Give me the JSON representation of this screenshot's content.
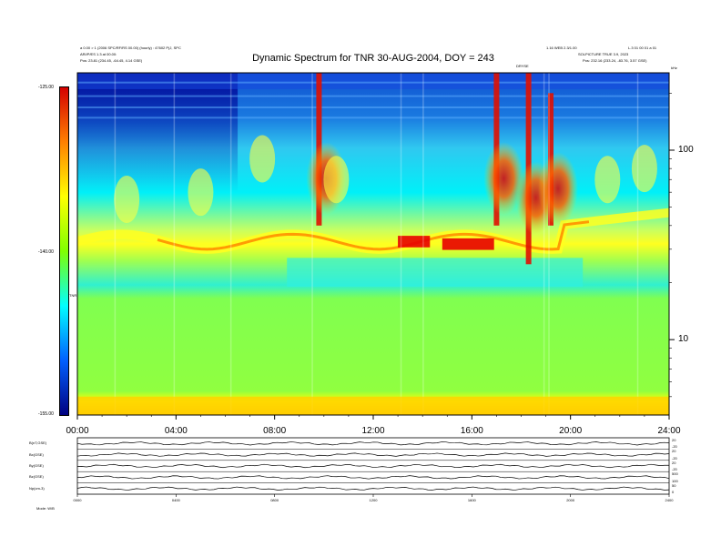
{
  "header": {
    "title": "Dynamic Spectrum for TNR 30-AUG-2004, DOY = 243",
    "left_line1": "a 0.00 > 1 (2006 SPC/RF/RS 00.00) (hourly) : 47602 P(J, SPC",
    "left_line2": "ARI/P/ES 1.3 at 00.00:",
    "left_line3": "Pos:    23.81 (234.45, -64.45, 4.14 GSE)",
    "right_line1": "1.16 WEB 2.3/1.00",
    "right_line2": "L.3 01 00 01 a 01",
    "right_line3": "SOLPICTURE TRUE 3.9, 2023",
    "right_line4": "Pos:    232.16 (233.24, -83.76, 3.57 GSE)",
    "marker_label": "DRYSE",
    "khz_label": "kHz"
  },
  "colorbar": {
    "ticks": [
      "-125.00",
      "-140.00",
      "-155.00"
    ],
    "label": "TNR",
    "colors": [
      "#d40000",
      "#ff8000",
      "#ffff00",
      "#80ff00",
      "#00ffff",
      "#0060ff",
      "#000080"
    ]
  },
  "chart_data": {
    "type": "heatmap",
    "title": "Dynamic Spectrum for TNR 30-AUG-2004, DOY = 243",
    "x_tick_labels": [
      "00:00",
      "04:00",
      "08:00",
      "12:00",
      "16:00",
      "20:00",
      "24:00"
    ],
    "x_range_hours": [
      0,
      24
    ],
    "y_scale": "log",
    "y_unit": "kHz",
    "y_tick_labels": [
      "100",
      "10"
    ],
    "y_range_khz": [
      4,
      256
    ],
    "z_range": [
      -155,
      -125
    ],
    "z_ticks": [
      -125,
      -140,
      -155
    ],
    "bands": [
      {
        "f_low": 125,
        "f_high": 256,
        "t_start": 0,
        "t_end": 24,
        "level": "blue (upper band, darker before 06:00)"
      },
      {
        "f_low": 35,
        "f_high": 90,
        "t_start": 0,
        "t_end": 24,
        "level": "cyan-yellow"
      },
      {
        "f_low": 28,
        "f_high": 36,
        "t_start": 3,
        "t_end": 21,
        "level": "red-yellow emission line"
      },
      {
        "f_low": 5,
        "f_high": 28,
        "t_start": 0,
        "t_end": 24,
        "level": "green"
      },
      {
        "f_low": 4,
        "f_high": 5,
        "t_start": 0,
        "t_end": 24,
        "level": "yellow-orange"
      }
    ],
    "bursts": [
      {
        "t_center": 9.8,
        "f_low": 40,
        "f_high": 256,
        "level": "red"
      },
      {
        "t_center": 17.0,
        "f_low": 40,
        "f_high": 256,
        "level": "red"
      },
      {
        "t_center": 18.3,
        "f_low": 25,
        "f_high": 256,
        "level": "red"
      },
      {
        "t_center": 19.2,
        "f_low": 40,
        "f_high": 200,
        "level": "orange-red"
      }
    ],
    "strong_emission": [
      {
        "t_start": 13.0,
        "t_end": 14.3,
        "f_center": 33,
        "level": "red"
      },
      {
        "t_start": 14.8,
        "t_end": 16.9,
        "f_center": 32,
        "level": "red"
      }
    ]
  },
  "lower_panels": {
    "rows": [
      {
        "label": "B(nT,GSE)",
        "right_ticks": [
          "20",
          "-20"
        ]
      },
      {
        "label": "Bx(GSE)",
        "right_ticks": [
          "20",
          "-20"
        ]
      },
      {
        "label": "By(GSE)",
        "right_ticks": [
          "20",
          "-20"
        ]
      },
      {
        "label": "Bz(GSE)",
        "right_ticks": [
          "500",
          "100"
        ]
      },
      {
        "label": "Np(cm-3)",
        "right_ticks": [
          "50",
          "0"
        ]
      }
    ],
    "x_tick_labels": [
      "0000",
      "0400",
      "0800",
      "1200",
      "1600",
      "2000",
      "2400"
    ],
    "footer_left": "Mode:   W/B"
  }
}
